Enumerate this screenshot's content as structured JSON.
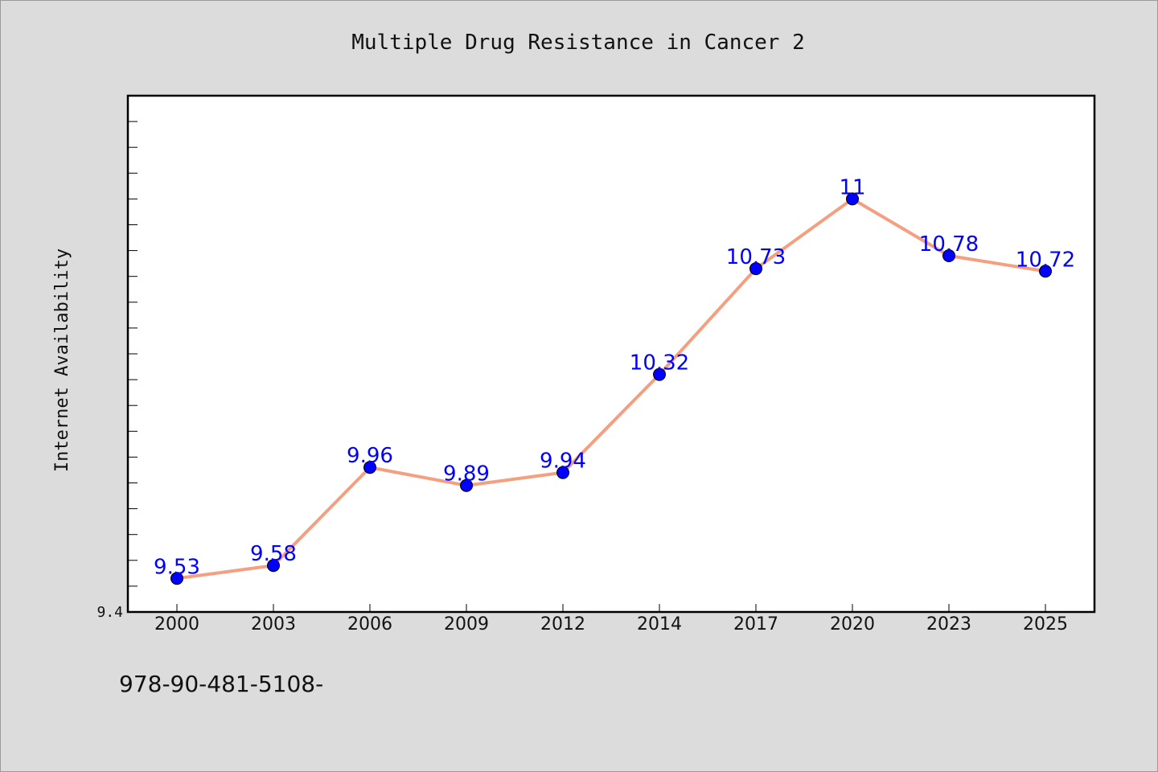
{
  "chart_data": {
    "type": "line",
    "title": "Multiple Drug Resistance in Cancer 2",
    "xlabel": "",
    "ylabel": "Internet Availability",
    "categories": [
      "2000",
      "2003",
      "2006",
      "2009",
      "2012",
      "2014",
      "2017",
      "2020",
      "2023",
      "2025"
    ],
    "series": [
      {
        "values": [
          9.53,
          9.58,
          9.96,
          9.89,
          9.94,
          10.32,
          10.73,
          11,
          10.78,
          10.72
        ],
        "labels": [
          "9.53",
          "9.58",
          "9.96",
          "9.89",
          "9.94",
          "10.32",
          "10.73",
          "11",
          "10.78",
          "10.72"
        ]
      }
    ],
    "ylim": [
      9.4,
      11.4
    ],
    "ytick_labels": [
      "9.4"
    ],
    "grid": false,
    "legend": "none",
    "colors": {
      "line": "#f4a080",
      "marker": "#0000ff",
      "data_label": "#0000ff",
      "background": "#dcdcdc",
      "plot_background": "#ffffff"
    }
  },
  "footer": {
    "isbn": "978-90-481-5108-"
  }
}
